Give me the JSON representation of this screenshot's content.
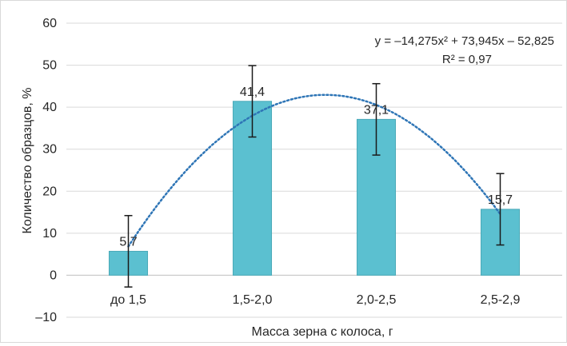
{
  "chart_data": {
    "type": "bar",
    "title": "",
    "xlabel": "Масса зерна с колоса, г",
    "ylabel": "Количество образцов, %",
    "categories": [
      "до 1,5",
      "1,5-2,0",
      "2,0-2,5",
      "2,5-2,9"
    ],
    "values": [
      5.7,
      41.4,
      37.1,
      15.7
    ],
    "value_labels": [
      "5,7",
      "41,4",
      "37,1",
      "15,7"
    ],
    "error_bars": [
      {
        "low": -2.8,
        "high": 14.2
      },
      {
        "low": 32.9,
        "high": 49.9
      },
      {
        "low": 28.6,
        "high": 45.6
      },
      {
        "low": 7.2,
        "high": 24.2
      }
    ],
    "ylim": [
      -10,
      60
    ],
    "yticks": [
      -10,
      0,
      10,
      20,
      30,
      40,
      50,
      60
    ],
    "ytick_labels": [
      "–10",
      "0",
      "10",
      "20",
      "30",
      "40",
      "50",
      "60"
    ],
    "grid": true,
    "trendline": {
      "type": "polynomial",
      "order": 2,
      "coefficients": [
        -14.275,
        73.945,
        -52.825
      ],
      "equation": "y = –14,275x² + 73,945x – 52,825",
      "r_squared": "R² = 0,97"
    },
    "colors": {
      "bar": "#5bc0d0",
      "bar_edge": "#4aa9b8",
      "trendline": "#2e75b6",
      "error_bar": "#1a1a1a",
      "grid": "#d9d9d9",
      "text": "#262626"
    }
  }
}
